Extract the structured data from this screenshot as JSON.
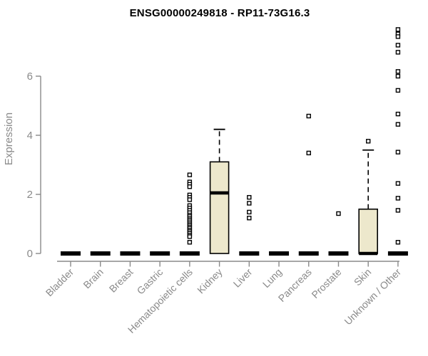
{
  "chart_data": {
    "type": "boxplot",
    "title": "ENSG00000249818 - RP11-73G16.3",
    "ylabel": "Expression",
    "xlabel": "",
    "ylim": [
      0,
      7.7
    ],
    "yticks": [
      0,
      2,
      4,
      6
    ],
    "grid": false,
    "legend": "none",
    "colors": {
      "box_fill": "#ede8cc",
      "box_stroke": "#000000",
      "median": "#000000",
      "axis": "#8a8a8a",
      "tick_label": "#8a8a8a",
      "title": "#000000",
      "outlier_fill": "#ffffff",
      "outlier_stroke": "#000000"
    },
    "categories": [
      "Bladder",
      "Brain",
      "Breast",
      "Gastric",
      "Hematopoietic cells",
      "Kidney",
      "Liver",
      "Lung",
      "Pancreas",
      "Prostate",
      "Skin",
      "Unknown / Other"
    ],
    "boxes": [
      {
        "category": "Bladder",
        "whisker_low": 0,
        "q1": 0,
        "median": 0,
        "q3": 0,
        "whisker_high": 0,
        "outliers": []
      },
      {
        "category": "Brain",
        "whisker_low": 0,
        "q1": 0,
        "median": 0,
        "q3": 0,
        "whisker_high": 0,
        "outliers": []
      },
      {
        "category": "Breast",
        "whisker_low": 0,
        "q1": 0,
        "median": 0,
        "q3": 0,
        "whisker_high": 0,
        "outliers": []
      },
      {
        "category": "Gastric",
        "whisker_low": 0,
        "q1": 0,
        "median": 0,
        "q3": 0,
        "whisker_high": 0,
        "outliers": []
      },
      {
        "category": "Hematopoietic cells",
        "whisker_low": 0,
        "q1": 0,
        "median": 0,
        "q3": 0,
        "whisker_high": 0,
        "outliers": [
          2.66,
          2.42,
          2.34,
          2.26,
          1.98,
          1.9,
          1.82,
          1.62,
          1.54,
          1.46,
          1.38,
          1.3,
          1.25,
          1.18,
          1.13,
          1.07,
          1.01,
          0.96,
          0.9,
          0.85,
          0.79,
          0.74,
          0.68,
          0.62,
          0.57,
          0.38
        ]
      },
      {
        "category": "Kidney",
        "whisker_low": 0,
        "q1": 0,
        "median": 2.05,
        "q3": 3.1,
        "whisker_high": 4.2,
        "outliers": []
      },
      {
        "category": "Liver",
        "whisker_low": 0,
        "q1": 0,
        "median": 0,
        "q3": 0,
        "whisker_high": 0,
        "outliers": [
          1.9,
          1.7,
          1.4,
          1.2
        ]
      },
      {
        "category": "Lung",
        "whisker_low": 0,
        "q1": 0,
        "median": 0,
        "q3": 0,
        "whisker_high": 0,
        "outliers": []
      },
      {
        "category": "Pancreas",
        "whisker_low": 0,
        "q1": 0,
        "median": 0,
        "q3": 0,
        "whisker_high": 0,
        "outliers": [
          4.65,
          3.4
        ]
      },
      {
        "category": "Prostate",
        "whisker_low": 0,
        "q1": 0,
        "median": 0,
        "q3": 0,
        "whisker_high": 0,
        "outliers": [
          1.35
        ]
      },
      {
        "category": "Skin",
        "whisker_low": 0,
        "q1": 0,
        "median": 0,
        "q3": 1.5,
        "whisker_high": 3.5,
        "outliers": [
          3.8
        ]
      },
      {
        "category": "Unknown / Other",
        "whisker_low": 0,
        "q1": 0,
        "median": 0,
        "q3": 0,
        "whisker_high": 0,
        "outliers": [
          7.58,
          7.43,
          7.34,
          7.05,
          6.81,
          6.16,
          6.0,
          5.52,
          4.72,
          4.37,
          3.43,
          2.37,
          1.87,
          1.46,
          0.38
        ]
      }
    ]
  }
}
